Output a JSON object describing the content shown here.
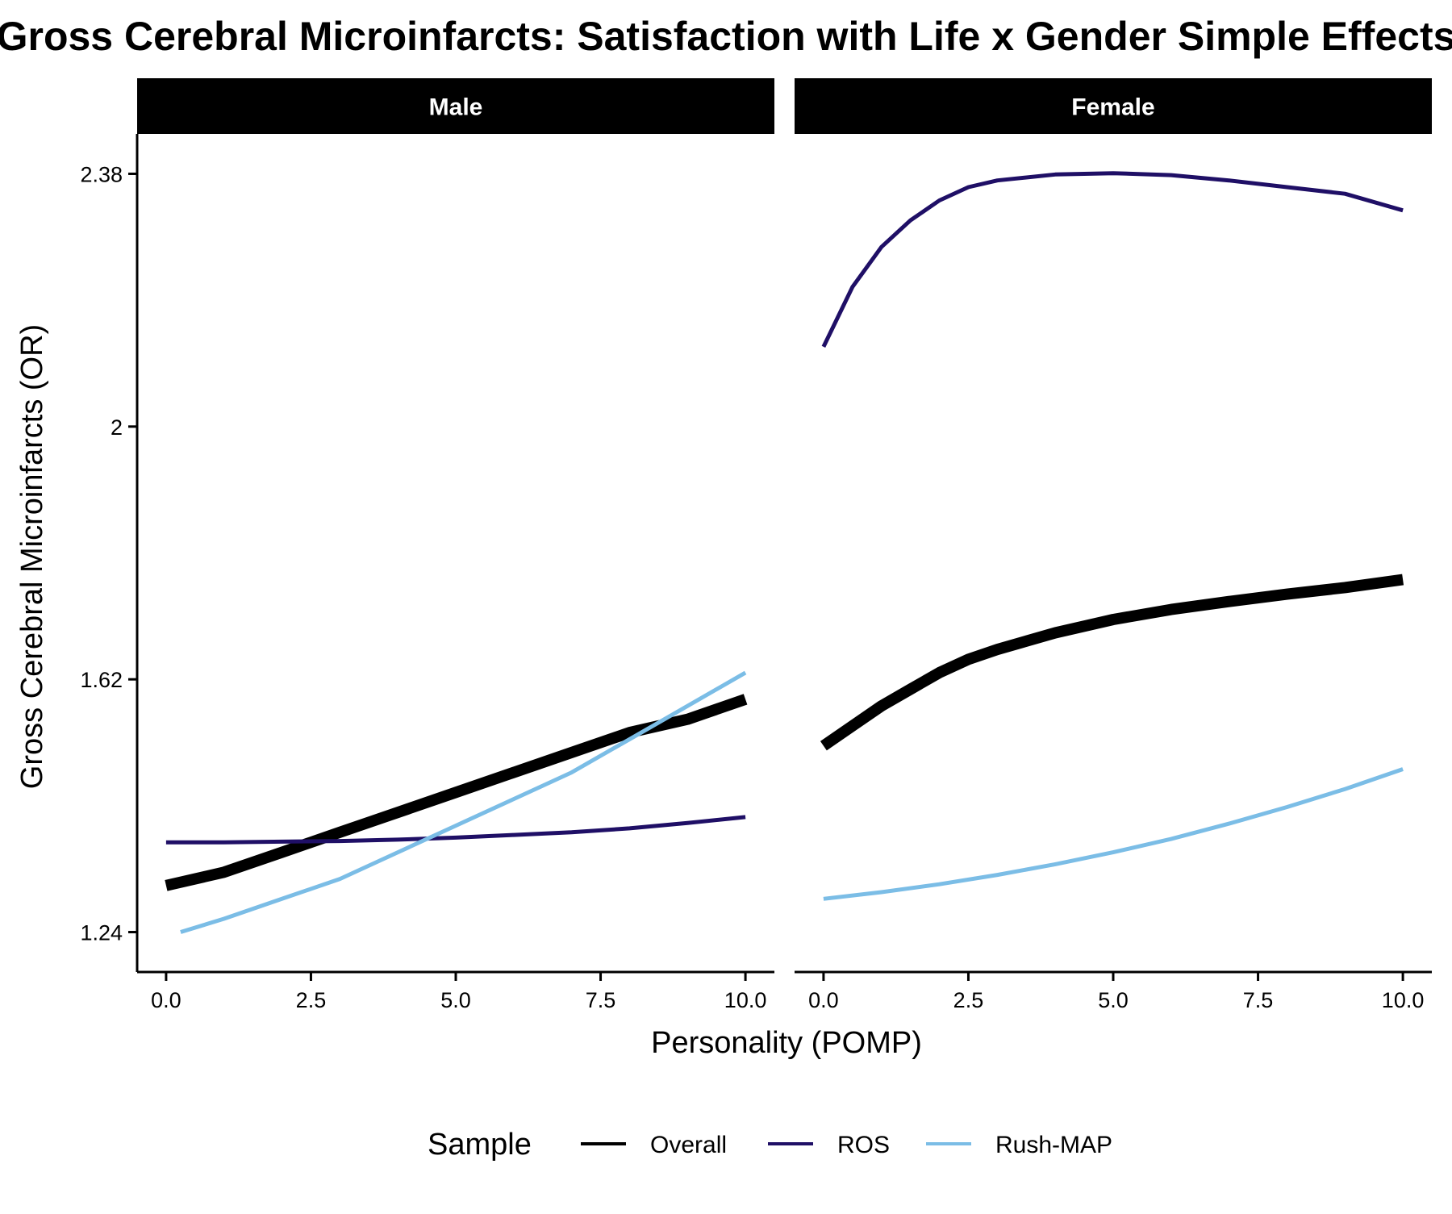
{
  "chart_data": {
    "type": "line",
    "title": "Gross Cerebral Microinfarcts: Satisfaction with Life x Gender Simple Effects",
    "xlabel": "Personality (POMP)",
    "ylabel": "Gross Cerebral Microinfarcts (OR)",
    "xlim": [
      -0.5,
      10.5
    ],
    "ylim": [
      1.18,
      2.44
    ],
    "x_ticks": [
      0,
      2.5,
      5,
      7.5,
      10
    ],
    "x_tick_labels": [
      "0.0",
      "2.5",
      "5.0",
      "7.5",
      "10.0"
    ],
    "y_ticks": [
      1.24,
      1.62,
      2,
      2.38
    ],
    "y_tick_labels": [
      "1.24",
      "1.62",
      "2",
      "2.38"
    ],
    "grid": false,
    "legend": {
      "title": "Sample",
      "position": "bottom",
      "entries": [
        "Overall",
        "ROS",
        "Rush-MAP"
      ]
    },
    "series_style": {
      "Overall": {
        "color": "#000000",
        "width": 14
      },
      "ROS": {
        "color": "#1f0f66",
        "width": 5
      },
      "Rush-MAP": {
        "color": "#7bbde6",
        "width": 5
      }
    },
    "panels": [
      {
        "label": "Male",
        "series": [
          {
            "name": "Overall",
            "x": [
              0,
              1,
              2,
              3,
              4,
              5,
              6,
              7,
              8,
              9,
              10
            ],
            "y": [
              1.31,
              1.33,
              1.36,
              1.39,
              1.42,
              1.45,
              1.48,
              1.51,
              1.54,
              1.56,
              1.59
            ]
          },
          {
            "name": "ROS",
            "x": [
              0,
              1,
              2,
              3,
              4,
              5,
              6,
              7,
              8,
              9,
              10
            ],
            "y": [
              1.375,
              1.375,
              1.376,
              1.377,
              1.379,
              1.382,
              1.386,
              1.39,
              1.396,
              1.404,
              1.413
            ]
          },
          {
            "name": "Rush-MAP",
            "x": [
              0.25,
              1,
              2,
              3,
              4,
              5,
              6,
              7,
              8,
              9,
              10
            ],
            "y": [
              1.24,
              1.26,
              1.29,
              1.32,
              1.36,
              1.4,
              1.44,
              1.48,
              1.53,
              1.58,
              1.63
            ]
          }
        ]
      },
      {
        "label": "Female",
        "series": [
          {
            "name": "Overall",
            "x": [
              0,
              0.5,
              1,
              1.5,
              2,
              2.5,
              3,
              4,
              5,
              6,
              7,
              8,
              9,
              10
            ],
            "y": [
              1.52,
              1.55,
              1.58,
              1.605,
              1.63,
              1.65,
              1.665,
              1.69,
              1.71,
              1.725,
              1.737,
              1.748,
              1.758,
              1.77
            ]
          },
          {
            "name": "ROS",
            "x": [
              0,
              0.5,
              1,
              1.5,
              2,
              2.5,
              3,
              4,
              5,
              6,
              7,
              8,
              9,
              10
            ],
            "y": [
              2.12,
              2.21,
              2.27,
              2.31,
              2.34,
              2.36,
              2.37,
              2.379,
              2.381,
              2.378,
              2.37,
              2.36,
              2.35,
              2.325
            ]
          },
          {
            "name": "Rush-MAP",
            "x": [
              0,
              1,
              2,
              3,
              4,
              5,
              6,
              7,
              8,
              9,
              10
            ],
            "y": [
              1.29,
              1.3,
              1.312,
              1.326,
              1.342,
              1.36,
              1.38,
              1.403,
              1.428,
              1.455,
              1.485
            ]
          }
        ]
      }
    ]
  }
}
